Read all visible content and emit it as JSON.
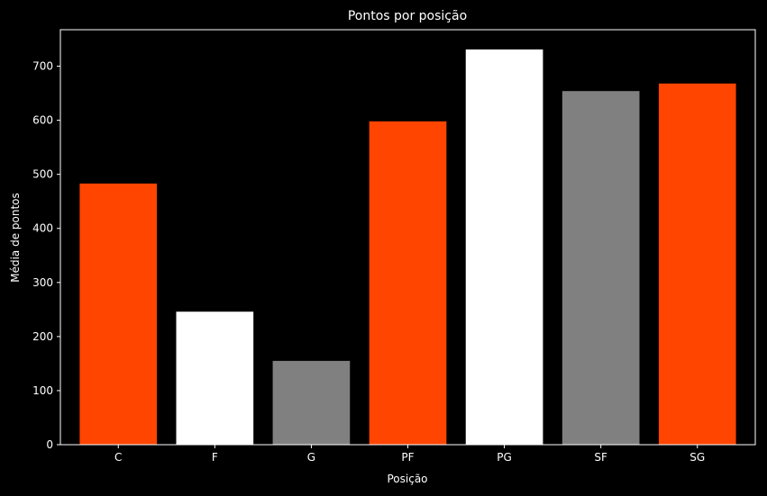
{
  "chart_data": {
    "type": "bar",
    "title": "Pontos por posição",
    "xlabel": "Posição",
    "ylabel": "Média de pontos",
    "categories": [
      "C",
      "F",
      "G",
      "PF",
      "PG",
      "SF",
      "SG"
    ],
    "values": [
      483,
      246,
      155,
      598,
      731,
      654,
      668
    ],
    "colors": [
      "#ff4500",
      "#ffffff",
      "#808080",
      "#ff4500",
      "#ffffff",
      "#808080",
      "#ff4500"
    ],
    "ylim": [
      0,
      767.5
    ],
    "yticks": [
      0,
      100,
      200,
      300,
      400,
      500,
      600,
      700
    ],
    "grid": false,
    "background": "#000000",
    "text_color": "#ffffff"
  }
}
